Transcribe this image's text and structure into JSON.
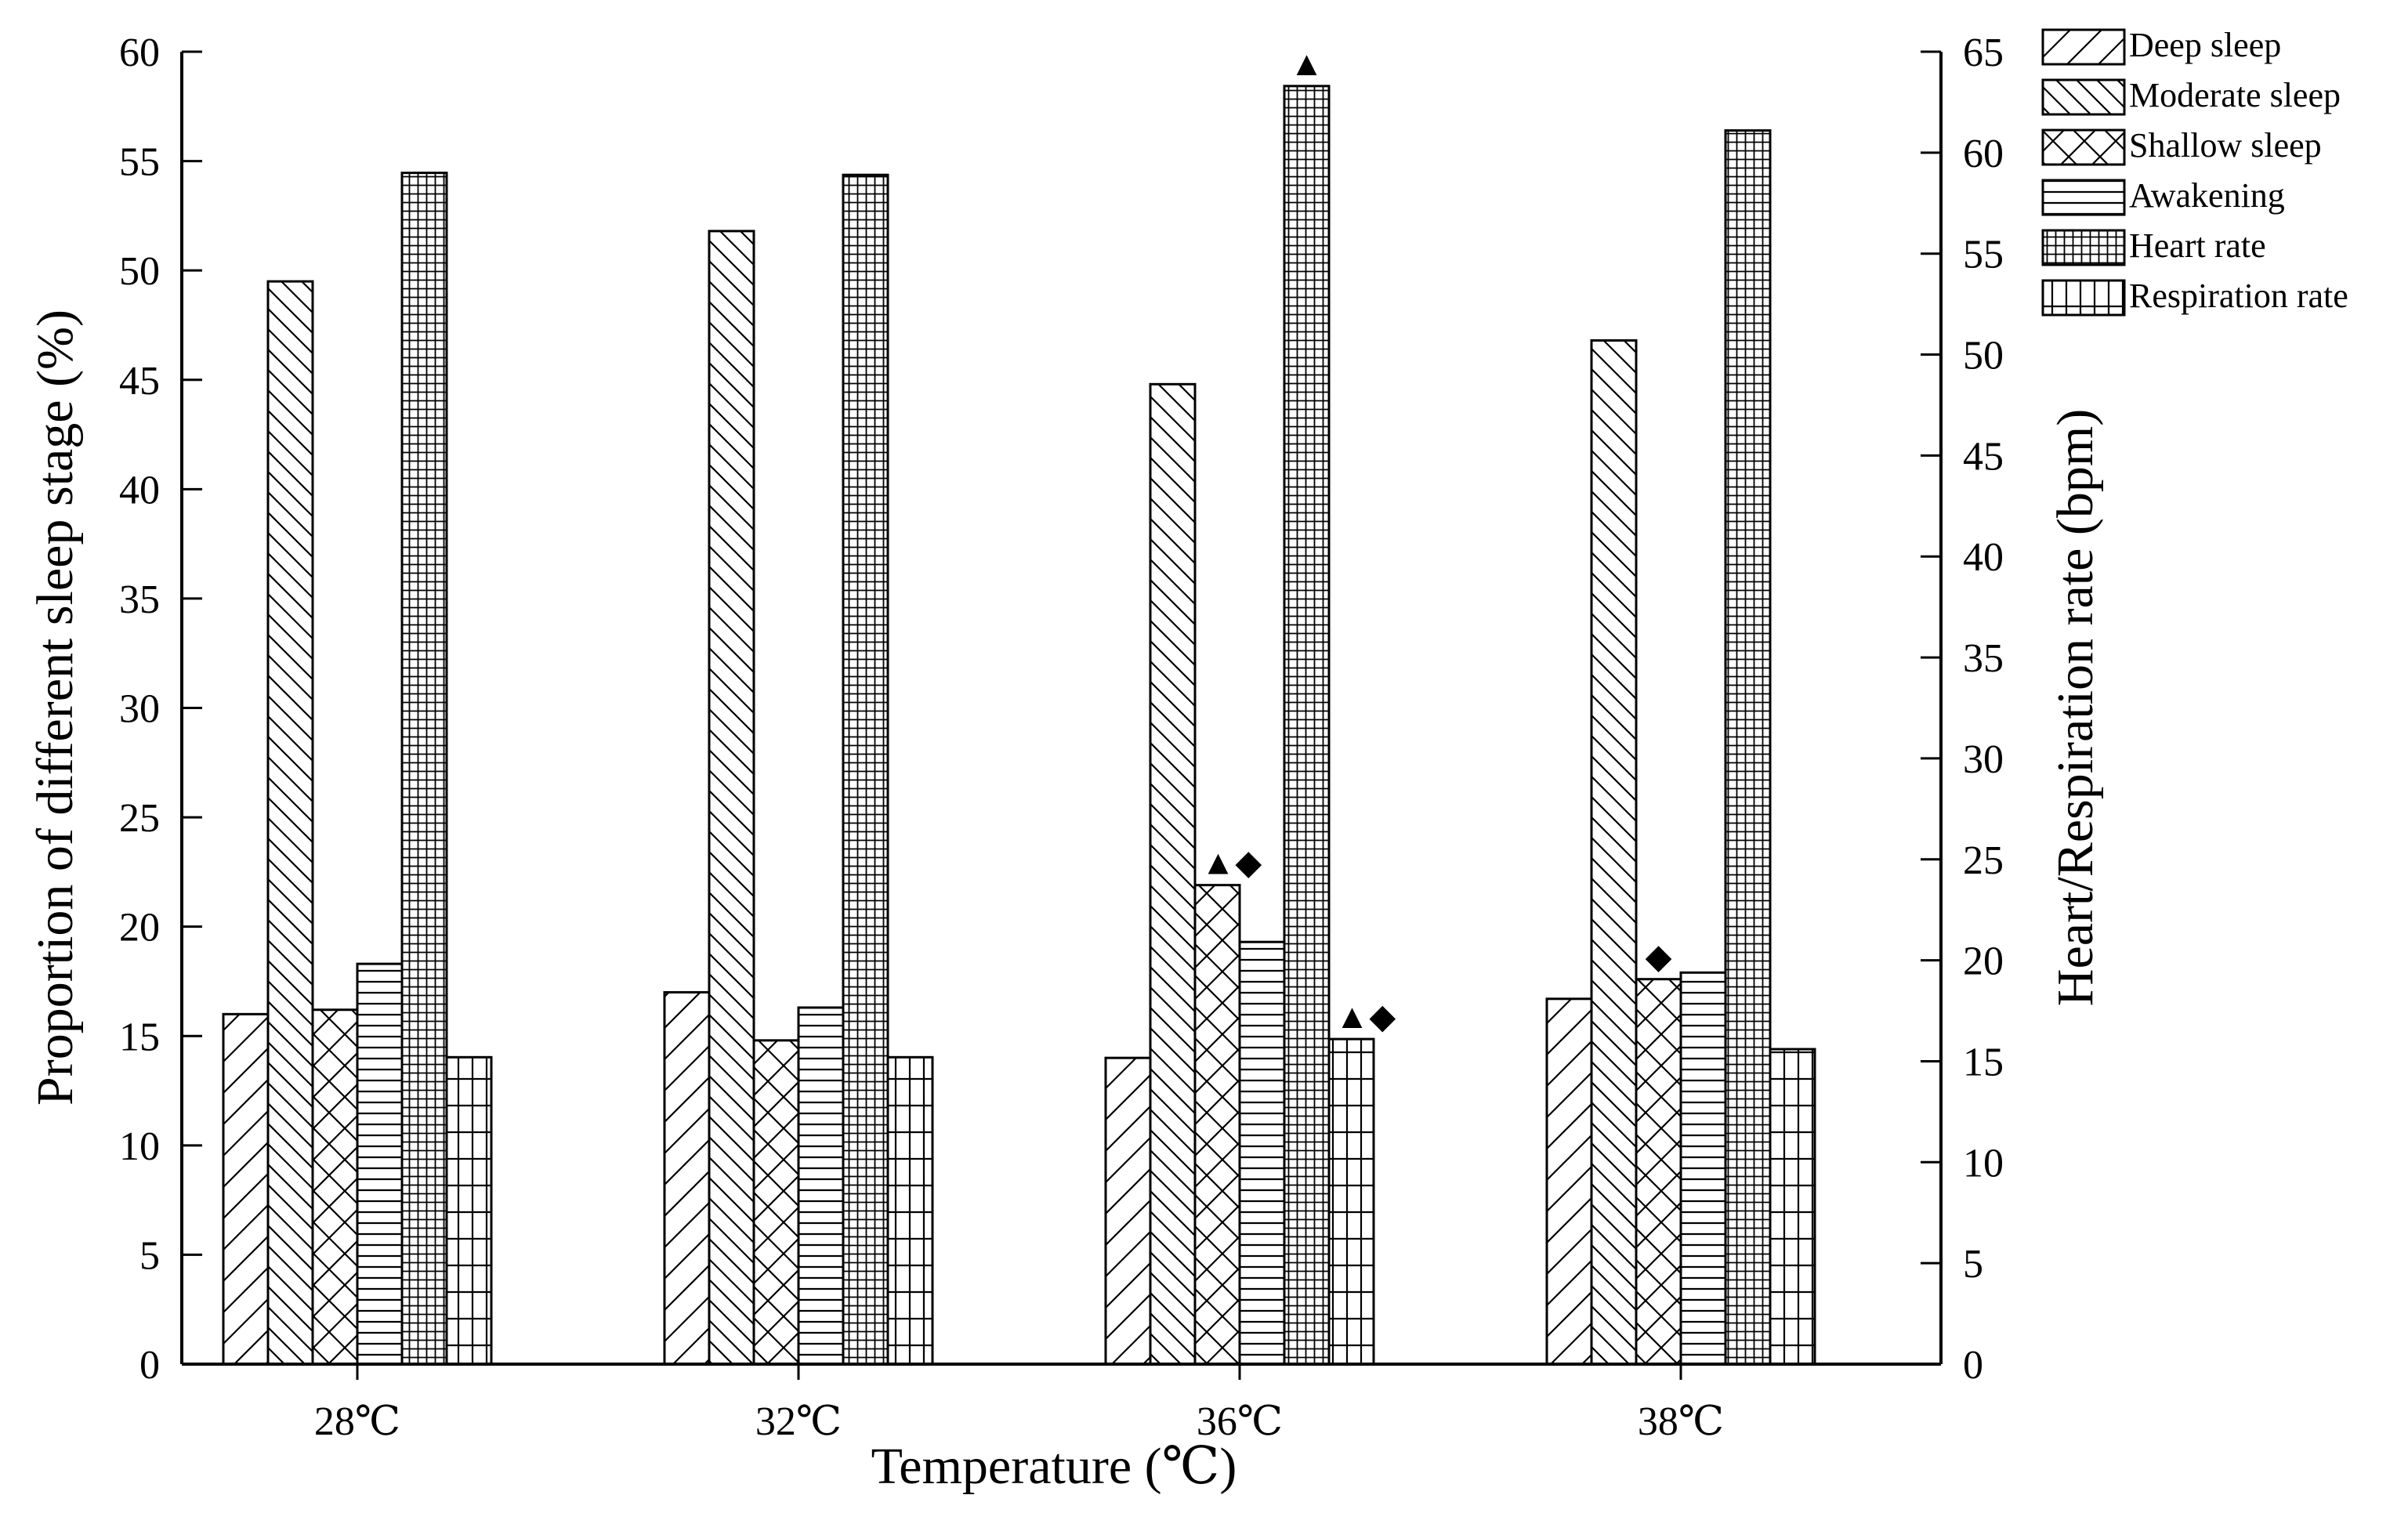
{
  "chart_data": {
    "type": "bar",
    "title": "",
    "xlabel": "Temperature (℃)",
    "ylabel": "Proportion of different sleep stage (%)",
    "y2label": "Heart/Respiration rate (bpm)",
    "categories": [
      "28℃",
      "32℃",
      "36℃",
      "38℃"
    ],
    "ylim": [
      0,
      60
    ],
    "y2lim": [
      0,
      65
    ],
    "yticks": [
      "0",
      "5",
      "10",
      "15",
      "20",
      "25",
      "30",
      "35",
      "40",
      "45",
      "50",
      "55",
      "60"
    ],
    "y2ticks": [
      "0",
      "5",
      "10",
      "15",
      "20",
      "25",
      "30",
      "35",
      "40",
      "45",
      "50",
      "55",
      "60",
      "65"
    ],
    "legend_position": "top-right",
    "series": [
      {
        "name": "Deep sleep",
        "axis": "left",
        "pattern": "diag-up",
        "values": [
          16.0,
          17.0,
          14.0,
          16.7
        ]
      },
      {
        "name": "Moderate sleep",
        "axis": "left",
        "pattern": "diag-down",
        "values": [
          49.5,
          51.8,
          44.8,
          46.8
        ]
      },
      {
        "name": "Shallow sleep",
        "axis": "left",
        "pattern": "crosshatch",
        "values": [
          16.2,
          14.8,
          21.9,
          17.6
        ]
      },
      {
        "name": "Awakening",
        "axis": "left",
        "pattern": "horizontal",
        "values": [
          18.3,
          16.3,
          19.3,
          17.9
        ]
      },
      {
        "name": "Heart rate",
        "axis": "right",
        "pattern": "dense-grid",
        "values": [
          59.0,
          58.9,
          63.3,
          61.1
        ]
      },
      {
        "name": "Respiration rate",
        "axis": "right",
        "pattern": "sparse-grid",
        "values": [
          15.2,
          15.2,
          16.1,
          15.6
        ]
      }
    ],
    "annotations": [
      {
        "category": "36℃",
        "series": "Heart rate",
        "text": "▲"
      },
      {
        "category": "36℃",
        "series": "Shallow sleep",
        "text": "▲◆"
      },
      {
        "category": "36℃",
        "series": "Respiration rate",
        "text": "▲◆"
      },
      {
        "category": "38℃",
        "series": "Shallow sleep",
        "text": "◆"
      }
    ]
  }
}
